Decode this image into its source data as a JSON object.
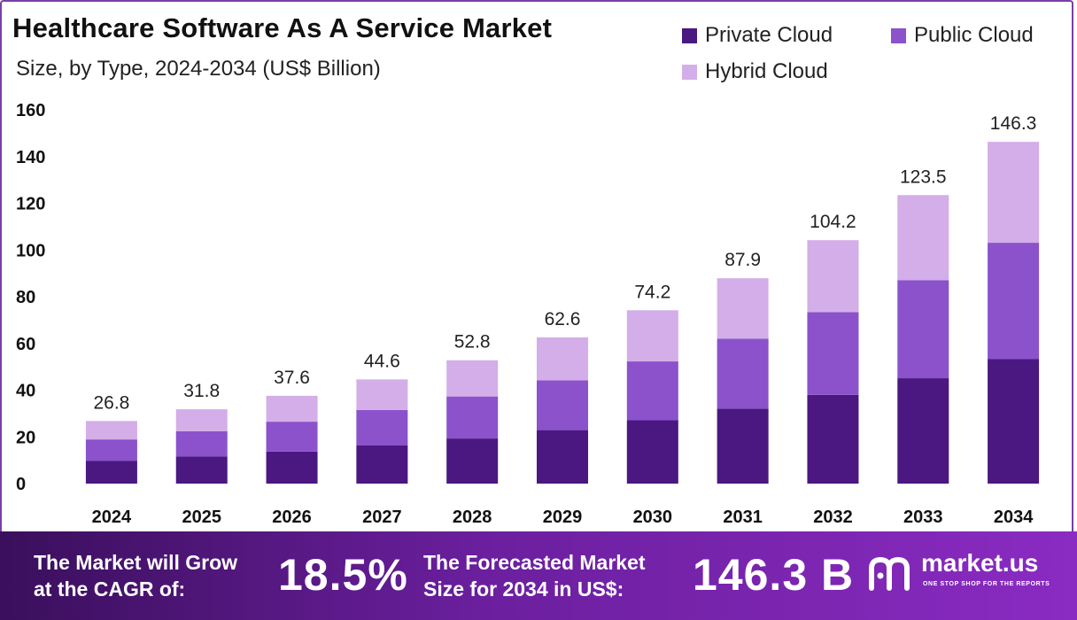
{
  "title": "Healthcare Software As A Service Market",
  "subtitle": "Size, by Type, 2024-2034 (US$ Billion)",
  "legend": [
    {
      "name": "Private Cloud",
      "color": "#4a1880"
    },
    {
      "name": "Public Cloud",
      "color": "#8b52cc"
    },
    {
      "name": "Hybrid Cloud",
      "color": "#d4aee8"
    }
  ],
  "chart_data": {
    "type": "bar",
    "stacked": true,
    "title": "Healthcare Software As A Service Market",
    "subtitle": "Size, by Type, 2024-2034 (US$ Billion)",
    "xlabel": "",
    "ylabel": "",
    "ylim": [
      0,
      160
    ],
    "yticks": [
      0,
      20,
      40,
      60,
      80,
      100,
      120,
      140,
      160
    ],
    "categories": [
      "2024",
      "2025",
      "2026",
      "2027",
      "2028",
      "2029",
      "2030",
      "2031",
      "2032",
      "2033",
      "2034"
    ],
    "series": [
      {
        "name": "Private Cloud",
        "color": "#4a1880",
        "values": [
          9.8,
          11.6,
          13.7,
          16.3,
          19.3,
          22.9,
          27.1,
          32.1,
          38.0,
          45.1,
          53.4
        ]
      },
      {
        "name": "Public Cloud",
        "color": "#8b52cc",
        "values": [
          9.1,
          10.8,
          12.8,
          15.2,
          18.0,
          21.3,
          25.2,
          29.9,
          35.4,
          42.0,
          49.7
        ]
      },
      {
        "name": "Hybrid Cloud",
        "color": "#d4aee8",
        "values": [
          7.9,
          9.4,
          11.1,
          13.1,
          15.5,
          18.4,
          21.9,
          25.9,
          30.8,
          36.4,
          43.2
        ]
      }
    ],
    "totals": [
      "26.8",
      "31.8",
      "37.6",
      "44.6",
      "52.8",
      "62.6",
      "74.2",
      "87.9",
      "104.2",
      "123.5",
      "146.3"
    ],
    "legend_position": "top-right"
  },
  "footer": {
    "cagr_label_line1": "The Market will Grow",
    "cagr_label_line2": "at the CAGR of:",
    "cagr_value": "18.5%",
    "forecast_label_line1": "The Forecasted Market",
    "forecast_label_line2": "Size for 2034 in US$:",
    "forecast_value": "146.3 B",
    "brand": "market.us",
    "tagline": "ONE STOP SHOP FOR THE REPORTS"
  }
}
